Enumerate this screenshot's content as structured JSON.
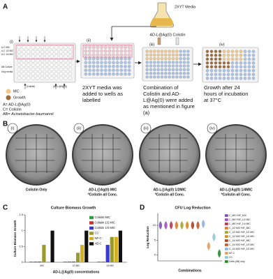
{
  "panel_a": {
    "label": "A",
    "media": "2XYT Media",
    "reagents": "AD-L@Ag(0) Colistin",
    "steps": [
      {
        "label": "(i)"
      },
      {
        "label": "(ii)",
        "lines": [
          "2XYT media was",
          "added to wells as",
          "labelled"
        ]
      },
      {
        "label": "(iii)",
        "lines": [
          "Combination of",
          "Colistin and AD-",
          "L@Ag(0) were added",
          "as mentioned in figure",
          "(a)"
        ]
      },
      {
        "label": "(iv)",
        "lines": [
          "Growth after 24",
          "hours of incubation",
          "at 37°C"
        ]
      }
    ],
    "plate_labels": [
      "A,C MIC",
      "A,C 1/2 MIC",
      "A,C 1/4 MIC",
      "AB Culture",
      "Only media",
      "(Colistin)",
      "(AD-L@Ag(0))"
    ],
    "legend": [
      "MC",
      "Growth"
    ],
    "key": [
      "A= AD-L@Ag(0)",
      "C= Colistin"
    ],
    "key_ab": {
      "prefix": "AB= ",
      "name": "Acinetobacter baumannii"
    }
  },
  "panel_b": {
    "label": "B",
    "plates": [
      {
        "label": "(i)",
        "caption": [
          "Colistin Only"
        ]
      },
      {
        "label": "(ii)",
        "caption": [
          "AD-L@Ag(0) MIC",
          "*Colistin all Conc."
        ]
      },
      {
        "label": "(iii)",
        "caption": [
          "AD-L@Ag(0) 1/2MIC",
          "*Colistin all Conc."
        ]
      },
      {
        "label": "(iv)",
        "caption": [
          "AD-L@Ag(0) 1/4MIC",
          "*Colistin all Conc."
        ]
      }
    ]
  },
  "chart_data": [
    {
      "type": "bar",
      "panel": "C",
      "title": "Culture Biomass Growth",
      "y_label": "Culture Biomass Growth",
      "x_label": "AD-L@Ag(0) concentrations",
      "categories": [
        "MIC",
        "1/2 MIC",
        "1/4 MIC"
      ],
      "ylim": [
        0,
        1.5
      ],
      "yticks": [
        0,
        0.5,
        1,
        1.5
      ],
      "series": [
        {
          "name": "Colistin MIC",
          "color": "#2e9e3e",
          "values": [
            0.02,
            0.02,
            0.02
          ]
        },
        {
          "name": "Colistin 1/2 MIC",
          "color": "#d03030",
          "values": [
            0.02,
            0.02,
            0.02
          ]
        },
        {
          "name": "Colistin 1/4 MIC",
          "color": "#3a3ad0",
          "values": [
            0.02,
            0.02,
            0.55
          ]
        },
        {
          "name": "CC",
          "color": "#9a9a2a",
          "values": [
            0.55,
            0.3,
            0.8
          ]
        },
        {
          "name": "NF-C",
          "color": "#d4b020",
          "values": [
            0.02,
            0.55,
            0.8
          ]
        },
        {
          "name": "AB-C",
          "color": "#111111",
          "values": [
            1,
            1,
            1
          ]
        }
      ]
    },
    {
      "type": "violin",
      "panel": "D",
      "title": "CFU Log Reduction",
      "y_label": "Log Reduction",
      "x_label": "Combinations",
      "categories": [
        null,
        null,
        null,
        null,
        null,
        null,
        null,
        null,
        null,
        null,
        null,
        null
      ],
      "ylim": [
        -2,
        14
      ],
      "yticks": [
        0,
        5,
        10
      ],
      "series": [
        {
          "name": "C_MIC+NF_MIC",
          "color": "#7b4fb0",
          "values": [
            10,
            null,
            null,
            null,
            null,
            null,
            null,
            null,
            null,
            null,
            null,
            null
          ]
        },
        {
          "name": "C_MIC+NF_1/2 MIC",
          "color": "#a04fc0",
          "values": [
            null,
            10,
            null,
            null,
            null,
            null,
            null,
            null,
            null,
            null,
            null,
            null
          ]
        },
        {
          "name": "C_MIC+NF_1/4 MIC",
          "color": "#c03050",
          "values": [
            null,
            null,
            10,
            null,
            null,
            null,
            null,
            null,
            null,
            null,
            null,
            null
          ]
        },
        {
          "name": "C_1/2 MIC+NF_MIC",
          "color": "#e07a20",
          "values": [
            null,
            null,
            null,
            10,
            null,
            null,
            null,
            null,
            null,
            null,
            null,
            null
          ]
        },
        {
          "name": "C_1/2 MIC+NF_1/2 MIC",
          "color": "#a8a030",
          "values": [
            null,
            null,
            null,
            null,
            10,
            null,
            null,
            null,
            null,
            null,
            null,
            null
          ]
        },
        {
          "name": "C_1/2 MIC+NF_1/4 MIC",
          "color": "#d88a20",
          "values": [
            null,
            null,
            null,
            null,
            null,
            10,
            null,
            null,
            null,
            null,
            null,
            null
          ]
        },
        {
          "name": "C_1/4 MIC+NF_MIC",
          "color": "#b04020",
          "values": [
            null,
            null,
            null,
            null,
            null,
            null,
            10,
            null,
            null,
            null,
            null,
            null
          ]
        },
        {
          "name": "C_1/4 MIC+NF_1/2 MIC",
          "color": "#c05a30",
          "values": [
            null,
            null,
            null,
            null,
            null,
            null,
            null,
            10,
            null,
            null,
            null,
            null
          ]
        },
        {
          "name": "C_1/4 MIC+NF_1/4 MIC",
          "color": "#8fb0e0",
          "values": [
            null,
            null,
            null,
            null,
            null,
            null,
            null,
            null,
            10.5,
            null,
            null,
            null
          ]
        },
        {
          "name": "NF-C",
          "color": "#e0a060",
          "values": [
            null,
            null,
            null,
            null,
            null,
            null,
            null,
            null,
            null,
            3,
            null,
            null
          ]
        },
        {
          "name": "CC",
          "color": "#90c8d8",
          "values": [
            null,
            null,
            null,
            null,
            null,
            null,
            null,
            null,
            null,
            null,
            6,
            null
          ]
        },
        {
          "name": "Cells (AB) only",
          "color": "#2a8a2a",
          "values": [
            null,
            null,
            null,
            null,
            null,
            null,
            null,
            null,
            null,
            null,
            null,
            0.5
          ]
        }
      ]
    }
  ]
}
